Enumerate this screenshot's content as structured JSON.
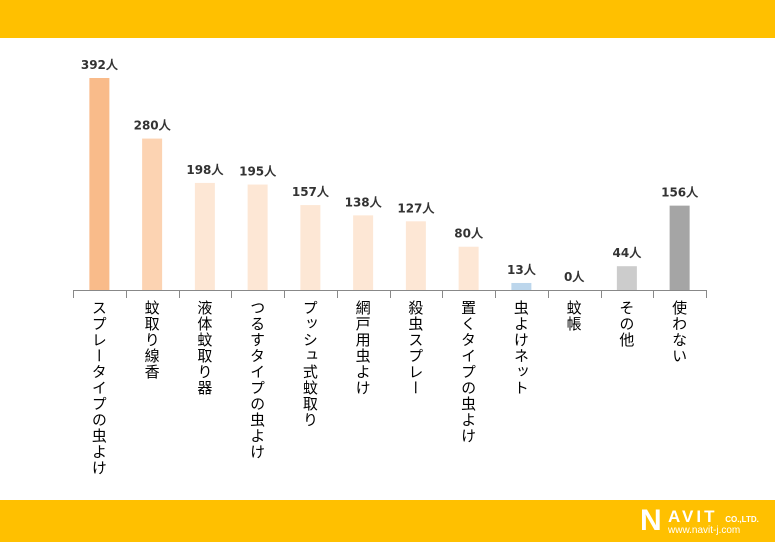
{
  "chart_data": {
    "type": "bar",
    "categories": [
      "スプレータイプの虫よけ",
      "蚊取り線香",
      "液体蚊取り器",
      "つるすタイプの虫よけ",
      "プッシュ式蚊取り",
      "網戸用虫よけ",
      "殺虫スプレー",
      "置くタイプの虫よけ",
      "虫よけネット",
      "蚊帳",
      "その他",
      "使わない"
    ],
    "values": [
      392,
      280,
      198,
      195,
      157,
      138,
      127,
      80,
      13,
      0,
      44,
      156
    ],
    "value_labels": [
      "392人",
      "280人",
      "198人",
      "195人",
      "157人",
      "138人",
      "127人",
      "80人",
      "13人",
      "0人",
      "44人",
      "156人"
    ],
    "colors": [
      "#f9bb8a",
      "#fcd3b2",
      "#fde7d5",
      "#fde7d5",
      "#fde7d5",
      "#fde7d5",
      "#fde7d5",
      "#fde7d5",
      "#bcd6ec",
      "#fde7d5",
      "#cccccc",
      "#a5a5a5"
    ],
    "title": "",
    "xlabel": "",
    "ylabel": "",
    "ylim": [
      0,
      392
    ],
    "grid": false
  },
  "footer": {
    "logo_text": "NAVIT CO.,LTD.",
    "logo_n": "N",
    "logo_avit": "AVIT",
    "logo_co": "CO.,LTD.",
    "url": "www.navit-j.com"
  },
  "theme": {
    "band": "#ffc000"
  }
}
